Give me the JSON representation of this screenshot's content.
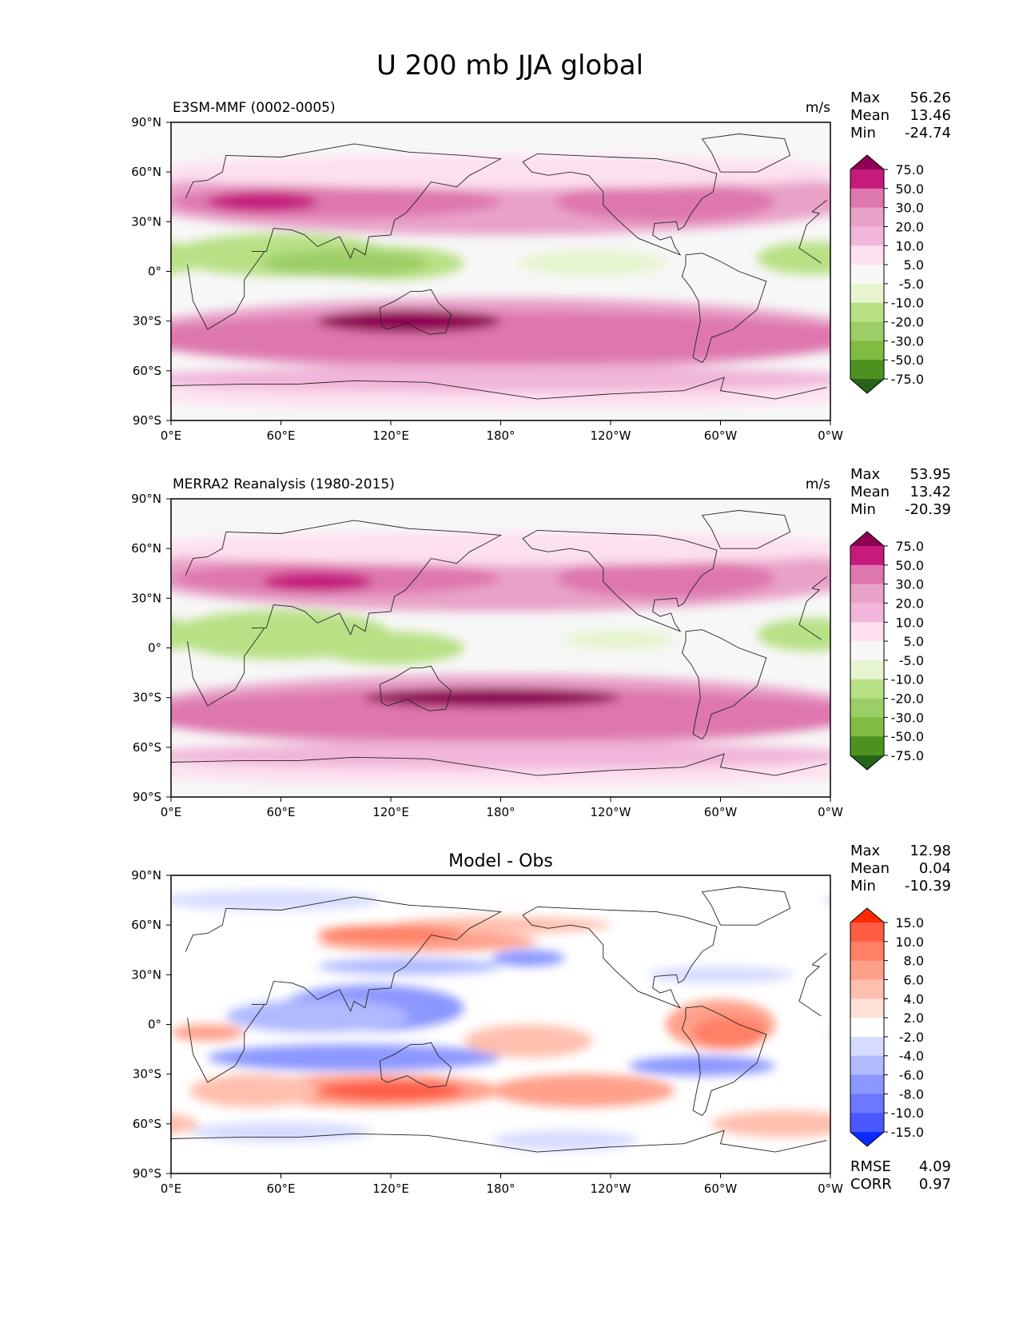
{
  "figure": {
    "title": "U 200 mb JJA global"
  },
  "chart_data": [
    {
      "type": "heatmap",
      "title": "E3SM-MMF (0002-0005)",
      "units": "m/s",
      "xlabel": "",
      "ylabel": "",
      "x_ticks": [
        "0°E",
        "60°E",
        "120°E",
        "180°",
        "120°W",
        "60°W",
        "0°W"
      ],
      "y_ticks": [
        "90°N",
        "60°N",
        "30°N",
        "0°",
        "30°S",
        "60°S",
        "90°S"
      ],
      "xlim": [
        0,
        360
      ],
      "ylim": [
        -90,
        90
      ],
      "stats": {
        "labels": [
          "Max",
          "Mean",
          "Min"
        ],
        "values": [
          "56.26",
          "13.46",
          "-24.74"
        ]
      },
      "colorbar": {
        "levels": [
          "75.0",
          "50.0",
          "30.0",
          "20.0",
          "10.0",
          "5.0",
          "-5.0",
          "-10.0",
          "-20.0",
          "-30.0",
          "-50.0",
          "-75.0"
        ],
        "colors": [
          "#8e0152",
          "#c51b7d",
          "#de77ae",
          "#e9a3c9",
          "#f1b6da",
          "#fde0ef",
          "#f7f7f7",
          "#e6f5d0",
          "#b8e186",
          "#9cce68",
          "#7fbc41",
          "#4d9221",
          "#276419"
        ]
      }
    },
    {
      "type": "heatmap",
      "title": "MERRA2 Reanalysis (1980-2015)",
      "units": "m/s",
      "xlabel": "",
      "ylabel": "",
      "x_ticks": [
        "0°E",
        "60°E",
        "120°E",
        "180°",
        "120°W",
        "60°W",
        "0°W"
      ],
      "y_ticks": [
        "90°N",
        "60°N",
        "30°N",
        "0°",
        "30°S",
        "60°S",
        "90°S"
      ],
      "xlim": [
        0,
        360
      ],
      "ylim": [
        -90,
        90
      ],
      "stats": {
        "labels": [
          "Max",
          "Mean",
          "Min"
        ],
        "values": [
          "53.95",
          "13.42",
          "-20.39"
        ]
      },
      "colorbar": {
        "levels": [
          "75.0",
          "50.0",
          "30.0",
          "20.0",
          "10.0",
          "5.0",
          "-5.0",
          "-10.0",
          "-20.0",
          "-30.0",
          "-50.0",
          "-75.0"
        ],
        "colors": [
          "#8e0152",
          "#c51b7d",
          "#de77ae",
          "#e9a3c9",
          "#f1b6da",
          "#fde0ef",
          "#f7f7f7",
          "#e6f5d0",
          "#b8e186",
          "#9cce68",
          "#7fbc41",
          "#4d9221",
          "#276419"
        ]
      }
    },
    {
      "type": "heatmap",
      "title": "Model - Obs",
      "units": "",
      "xlabel": "",
      "ylabel": "",
      "x_ticks": [
        "0°E",
        "60°E",
        "120°E",
        "180°",
        "120°W",
        "60°W",
        "0°W"
      ],
      "y_ticks": [
        "90°N",
        "60°N",
        "30°N",
        "0°",
        "30°S",
        "60°S",
        "90°S"
      ],
      "xlim": [
        0,
        360
      ],
      "ylim": [
        -90,
        90
      ],
      "stats": {
        "labels": [
          "Max",
          "Mean",
          "Min"
        ],
        "values": [
          "12.98",
          "0.04",
          "-10.39"
        ]
      },
      "extra_stats": {
        "labels": [
          "RMSE",
          "CORR"
        ],
        "values": [
          "4.09",
          "0.97"
        ]
      },
      "colorbar": {
        "levels": [
          "15.0",
          "10.0",
          "8.0",
          "6.0",
          "4.0",
          "2.0",
          "-2.0",
          "-4.0",
          "-6.0",
          "-8.0",
          "-10.0",
          "-15.0"
        ],
        "colors": [
          "#ff2a00",
          "#ff5c44",
          "#ff8066",
          "#ffa08a",
          "#ffbfae",
          "#ffe0d6",
          "#ffffff",
          "#d6dcff",
          "#b0baff",
          "#8c97ff",
          "#6b78ff",
          "#4a59ff",
          "#0a2aff"
        ]
      }
    }
  ]
}
